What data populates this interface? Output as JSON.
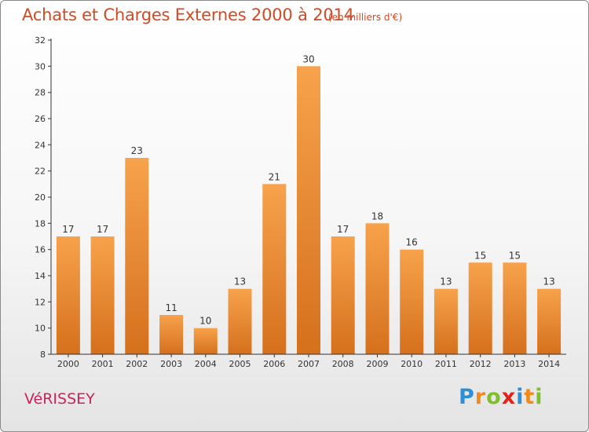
{
  "header": {
    "title": "Achats et Charges Externes 2000 à 2014",
    "subtitle": "(en milliers d'€)"
  },
  "footer": {
    "city": "VéRISSEY",
    "logo": {
      "letters": [
        "P",
        "r",
        "o",
        "x",
        "i",
        "t",
        "i"
      ],
      "colors": [
        "#2f8fd6",
        "#f08a1c",
        "#7fbf2a",
        "#e2231a",
        "#2f8fd6",
        "#f08a1c",
        "#7fbf2a"
      ]
    }
  },
  "chart_data": {
    "type": "bar",
    "categories": [
      "2000",
      "2001",
      "2002",
      "2003",
      "2004",
      "2005",
      "2006",
      "2007",
      "2008",
      "2009",
      "2010",
      "2011",
      "2012",
      "2013",
      "2014"
    ],
    "values": [
      17,
      17,
      23,
      11,
      10,
      13,
      21,
      30,
      17,
      18,
      16,
      13,
      15,
      15,
      13
    ],
    "ylim": [
      8,
      32
    ],
    "yticks": [
      8,
      10,
      12,
      14,
      16,
      18,
      20,
      22,
      24,
      26,
      28,
      30,
      32
    ],
    "grid": false,
    "colors": {
      "bar_top": "#f7a24c",
      "bar_bottom": "#d5701d",
      "axis": "#333333"
    }
  }
}
